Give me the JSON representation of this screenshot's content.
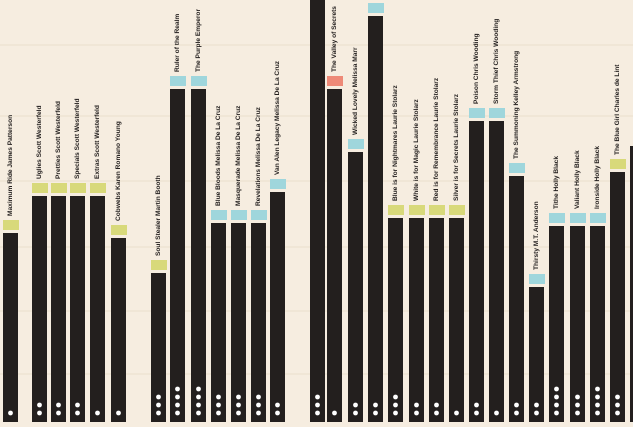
{
  "colors": {
    "background": "#f6ede0",
    "bar": "#231f1e",
    "gridline": "#eadfcd",
    "dot": "#ffffff",
    "text": "#231f1e",
    "badge_yellow": "#d8d97a",
    "badge_blue": "#9fd6dc",
    "badge_red": "#ee8a78"
  },
  "chart_data": {
    "type": "bar",
    "title": "",
    "xlabel": "",
    "ylabel": "",
    "grid": true,
    "value_unit": "relative bar height (0 = baseline, 1 = top of visible area)",
    "dots_meaning": "count of white dots shown at the foot of each bar",
    "bars": [
      {
        "label": "Maximum Ride James Patterson",
        "value": 0.447,
        "badge": "yellow",
        "dots": 1
      },
      {
        "label": "Uglies Scott Westerfeld",
        "value": 0.536,
        "badge": "yellow",
        "dots": 2
      },
      {
        "label": "Pretties Scott Westerfeld",
        "value": 0.536,
        "badge": "yellow",
        "dots": 2
      },
      {
        "label": "Specials Scott Westerfeld",
        "value": 0.536,
        "badge": "yellow",
        "dots": 2
      },
      {
        "label": "Extras Scott Westerfeld",
        "value": 0.536,
        "badge": "yellow",
        "dots": 1
      },
      {
        "label": "Cobwebs Karen Romano Young",
        "value": 0.436,
        "badge": "yellow",
        "dots": 1
      },
      {
        "label": "Soul Stealer Martin Booth",
        "value": 0.354,
        "badge": "yellow",
        "dots": 3
      },
      {
        "label": "Ruler of the Realm",
        "value": 0.789,
        "badge": "blue",
        "dots": 4
      },
      {
        "label": "The Purple Emperor",
        "value": 0.789,
        "badge": "blue",
        "dots": 4
      },
      {
        "label": "Blue Bloods Melissa De La Cruz",
        "value": 0.472,
        "badge": "blue",
        "dots": 3
      },
      {
        "label": "Masquerade Melissa De La Cruz",
        "value": 0.472,
        "badge": "blue",
        "dots": 3
      },
      {
        "label": "Revelations Melissa De La Cruz",
        "value": 0.472,
        "badge": "blue",
        "dots": 3
      },
      {
        "label": "Van Alen Legacy Melissa De La Cruz",
        "value": 0.545,
        "badge": "blue",
        "dots": 2
      },
      {
        "label": "",
        "value": 1.0,
        "badge": "none",
        "dots": 3
      },
      {
        "label": "The Valley of Secrets",
        "value": 0.789,
        "badge": "red",
        "dots": 1
      },
      {
        "label": "Wicked Lovely Melissa Marr",
        "value": 0.64,
        "badge": "blue",
        "dots": 2
      },
      {
        "label": "",
        "value": 0.962,
        "badge": "blue",
        "dots": 2
      },
      {
        "label": "Blue is for Nightmares Laurie Stolarz",
        "value": 0.483,
        "badge": "yellow",
        "dots": 3
      },
      {
        "label": "White is for Magic Laurie Stolarz",
        "value": 0.483,
        "badge": "yellow",
        "dots": 2
      },
      {
        "label": "Red is for Remembrance Laurie Stolarz",
        "value": 0.483,
        "badge": "yellow",
        "dots": 2
      },
      {
        "label": "Silver is for Secrets Laurie Stolarz",
        "value": 0.483,
        "badge": "yellow",
        "dots": 1
      },
      {
        "label": "Poison Chris Wooding",
        "value": 0.714,
        "badge": "blue",
        "dots": 2
      },
      {
        "label": "Storm Thief Chris Wooding",
        "value": 0.714,
        "badge": "blue",
        "dots": 1
      },
      {
        "label": "The Summoning Kelley Armstrong",
        "value": 0.584,
        "badge": "blue",
        "dots": 2
      },
      {
        "label": "Thirsty M.T. Anderson",
        "value": 0.32,
        "badge": "blue",
        "dots": 2
      },
      {
        "label": "Tithe Holly Black",
        "value": 0.465,
        "badge": "blue",
        "dots": 4
      },
      {
        "label": "Valiant Holly Black",
        "value": 0.465,
        "badge": "blue",
        "dots": 3
      },
      {
        "label": "Ironside Holly Black",
        "value": 0.465,
        "badge": "blue",
        "dots": 4
      },
      {
        "label": "The Blue Girl Charles de Lint",
        "value": 0.593,
        "badge": "yellow",
        "dots": 3
      },
      {
        "label": "",
        "value": 0.654,
        "badge": "none",
        "dots": 0
      }
    ]
  }
}
